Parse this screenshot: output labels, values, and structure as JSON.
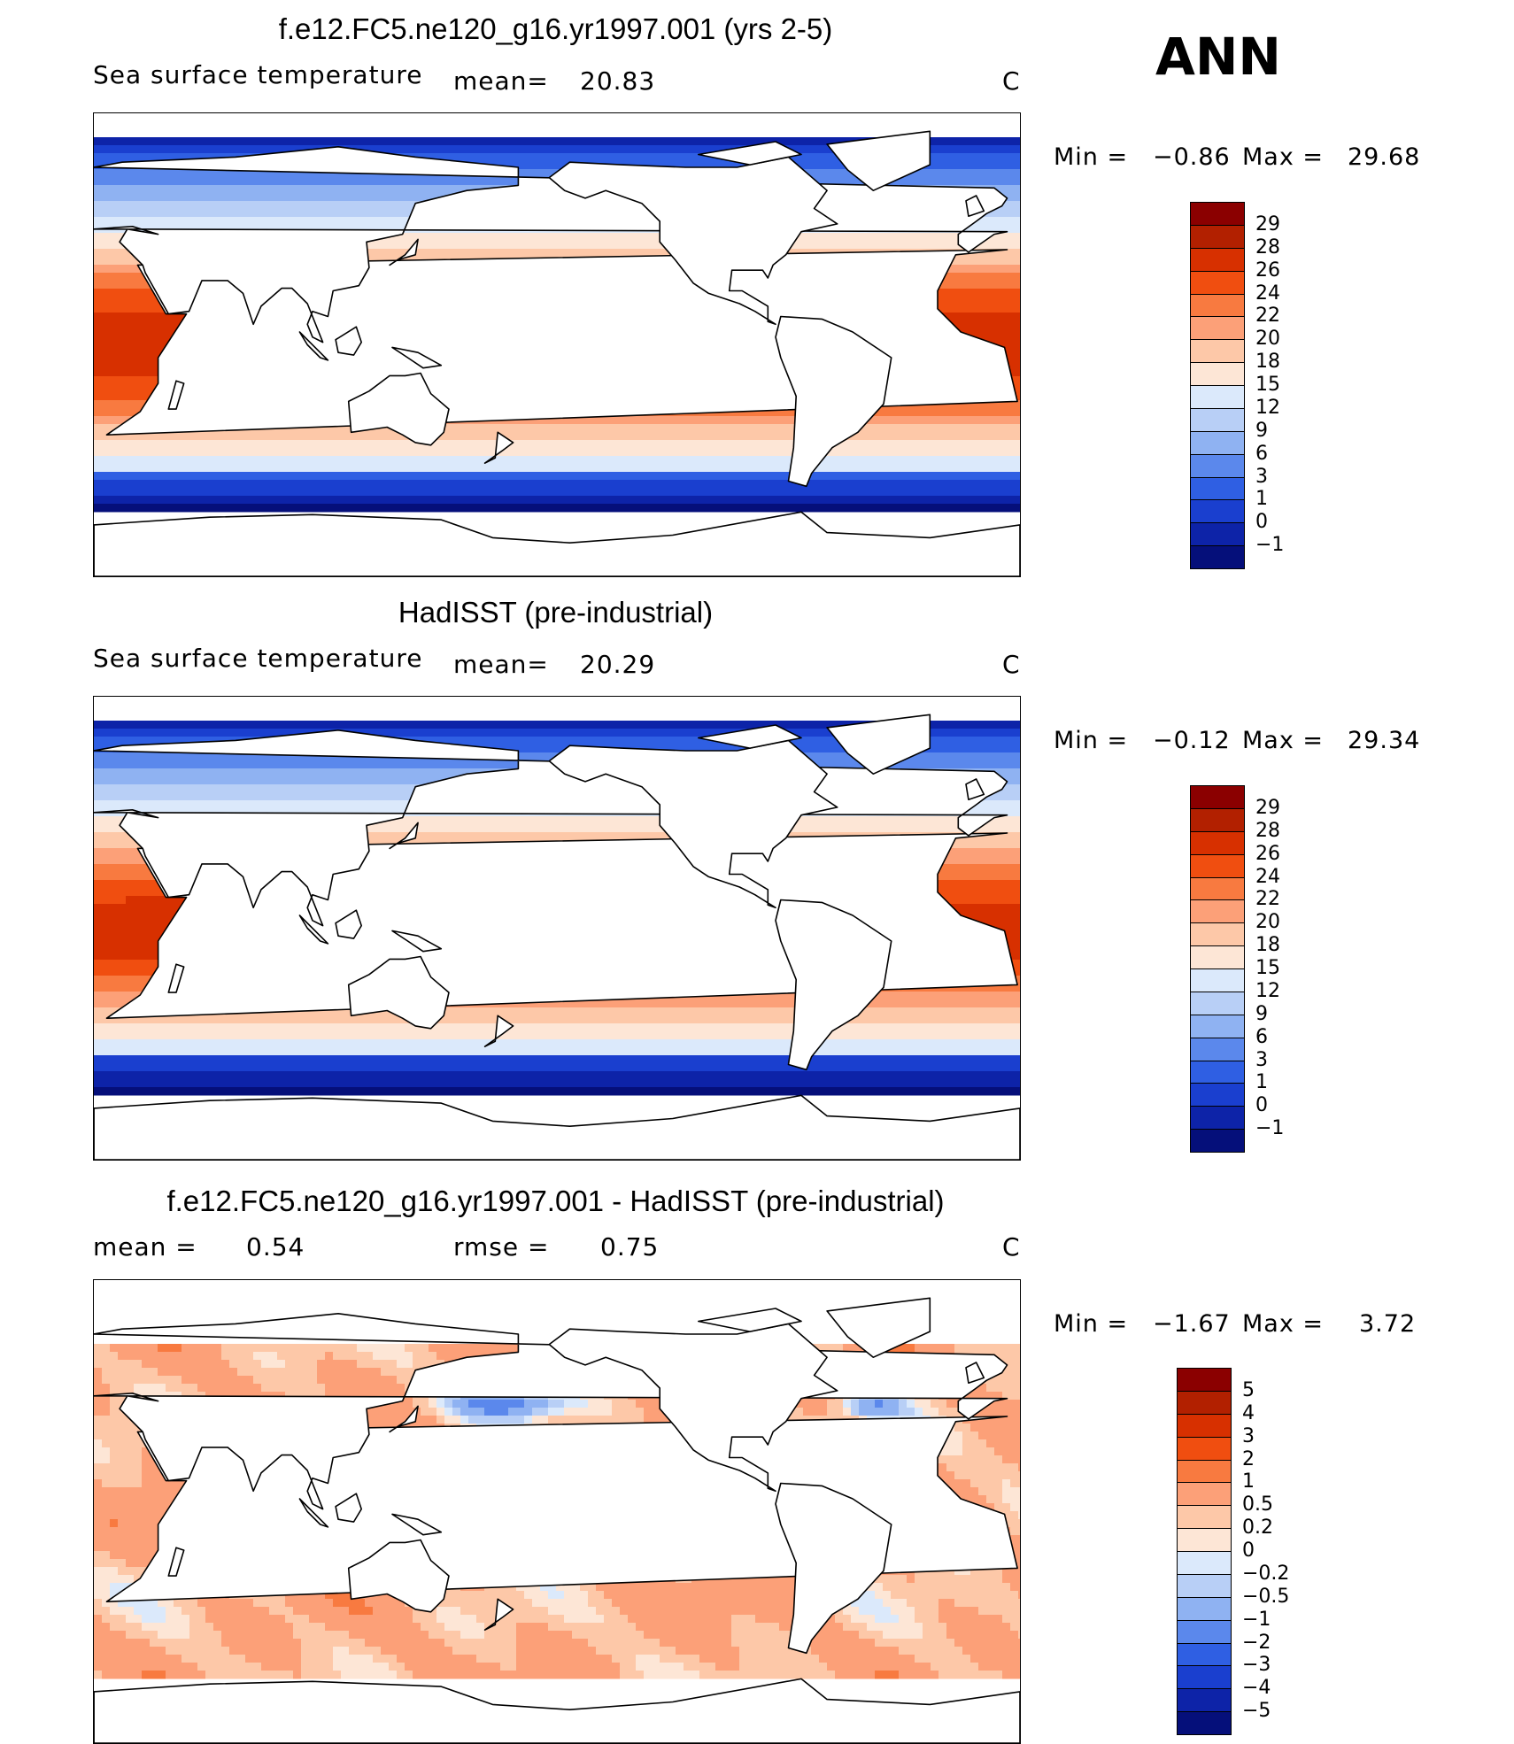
{
  "season": "ANN",
  "panels": [
    {
      "title": "f.e12.FC5.ne120_g16.yr1997.001 (yrs 2-5)",
      "variable": "Sea surface temperature",
      "mean_label": "mean=",
      "mean_value": "20.83",
      "units": "C",
      "min_label": "Min =",
      "min_value": "−0.86",
      "max_label": "Max =",
      "max_value": "29.68"
    },
    {
      "title": "HadISST (pre-industrial)",
      "variable": "Sea surface temperature",
      "mean_label": "mean=",
      "mean_value": "20.29",
      "units": "C",
      "min_label": "Min =",
      "min_value": "−0.12",
      "max_label": "Max =",
      "max_value": "29.34"
    },
    {
      "title": "f.e12.FC5.ne120_g16.yr1997.001 - HadISST (pre-industrial)",
      "mean_label": "mean =",
      "mean_value": "0.54",
      "rmse_label": "rmse =",
      "rmse_value": "0.75",
      "units": "C",
      "min_label": "Min =",
      "min_value": "−1.67",
      "max_label": "Max =",
      "max_value": "3.72"
    }
  ],
  "colorbars": {
    "sst": {
      "labels": [
        "29",
        "28",
        "26",
        "24",
        "22",
        "20",
        "18",
        "15",
        "12",
        "9",
        "6",
        "3",
        "1",
        "0",
        "−1"
      ],
      "colors": [
        "#8b0000",
        "#b22000",
        "#d73000",
        "#f04e10",
        "#f87a40",
        "#fca078",
        "#fdc8a8",
        "#fde6d6",
        "#dbe9fb",
        "#b8cff6",
        "#8fb2f2",
        "#5b88ec",
        "#2f5fe3",
        "#1a3fcf",
        "#0d23a8",
        "#050f7a"
      ]
    },
    "diff": {
      "labels": [
        "5",
        "4",
        "3",
        "2",
        "1",
        "0.5",
        "0.2",
        "0",
        "−0.2",
        "−0.5",
        "−1",
        "−2",
        "−3",
        "−4",
        "−5"
      ],
      "colors": [
        "#8b0000",
        "#b22000",
        "#d73000",
        "#f04e10",
        "#f87a40",
        "#fca078",
        "#fdc8a8",
        "#fde6d6",
        "#dbe9fb",
        "#b8cff6",
        "#8fb2f2",
        "#5b88ec",
        "#2f5fe3",
        "#1a3fcf",
        "#0d23a8",
        "#050f7a"
      ]
    }
  }
}
